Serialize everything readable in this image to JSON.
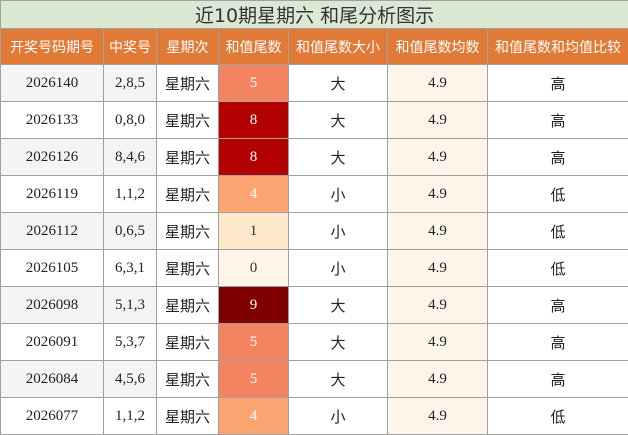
{
  "table": {
    "title": "近10期星期六 和尾分析图示",
    "headers": [
      "开奖号码期号",
      "中奖号",
      "星期次",
      "和值尾数",
      "和值尾数大小",
      "和值尾数均数",
      "和值尾数和均值比较"
    ],
    "rows": [
      [
        "2026140",
        "2,8,5",
        "星期六",
        "5",
        "大",
        "4.9",
        "高"
      ],
      [
        "2026133",
        "0,8,0",
        "星期六",
        "8",
        "大",
        "4.9",
        "高"
      ],
      [
        "2026126",
        "8,4,6",
        "星期六",
        "8",
        "大",
        "4.9",
        "高"
      ],
      [
        "2026119",
        "1,1,2",
        "星期六",
        "4",
        "小",
        "4.9",
        "低"
      ],
      [
        "2026112",
        "0,6,5",
        "星期六",
        "1",
        "小",
        "4.9",
        "低"
      ],
      [
        "2026105",
        "6,3,1",
        "星期六",
        "0",
        "小",
        "4.9",
        "低"
      ],
      [
        "2026098",
        "5,1,3",
        "星期六",
        "9",
        "大",
        "4.9",
        "高"
      ],
      [
        "2026091",
        "5,3,7",
        "星期六",
        "5",
        "大",
        "4.9",
        "高"
      ],
      [
        "2026084",
        "4,5,6",
        "星期六",
        "5",
        "大",
        "4.9",
        "高"
      ],
      [
        "2026077",
        "1,1,2",
        "星期六",
        "4",
        "小",
        "4.9",
        "低"
      ]
    ]
  }
}
